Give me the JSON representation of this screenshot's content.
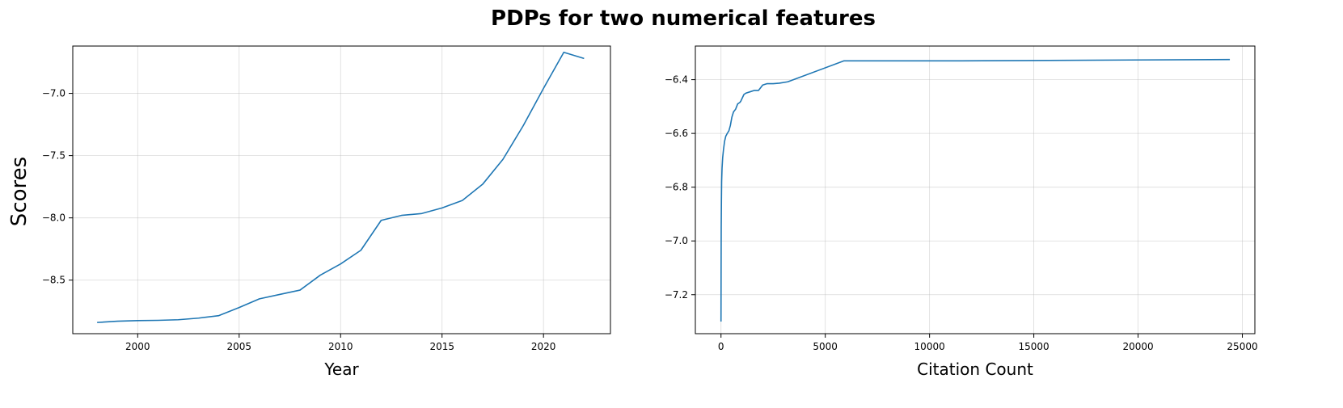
{
  "figure": {
    "title": "PDPs for two numerical features",
    "ylabel": "Scores"
  },
  "chart_data": [
    {
      "type": "line",
      "title": "",
      "xlabel": "Year",
      "ylabel": "Scores",
      "xlim": [
        1996.8,
        2023.3
      ],
      "ylim": [
        -8.93,
        -6.62
      ],
      "xticks": [
        2000,
        2005,
        2010,
        2015,
        2020
      ],
      "yticks": [
        -8.5,
        -8.0,
        -7.5,
        -7.0
      ],
      "grid": true,
      "color": "#1f77b4",
      "x": [
        1998,
        1999,
        2000,
        2001,
        2002,
        2003,
        2004,
        2005,
        2006,
        2007,
        2008,
        2009,
        2010,
        2011,
        2012,
        2013,
        2014,
        2015,
        2016,
        2017,
        2018,
        2019,
        2020,
        2021,
        2022
      ],
      "y": [
        -8.84,
        -8.83,
        -8.825,
        -8.823,
        -8.818,
        -8.805,
        -8.785,
        -8.72,
        -8.65,
        -8.615,
        -8.58,
        -8.46,
        -8.37,
        -8.26,
        -8.02,
        -7.98,
        -7.965,
        -7.92,
        -7.86,
        -7.73,
        -7.53,
        -7.26,
        -6.96,
        -6.67,
        -6.72
      ]
    },
    {
      "type": "line",
      "title": "",
      "xlabel": "Citation Count",
      "ylabel": "",
      "xlim": [
        -1230,
        25600
      ],
      "ylim": [
        -7.345,
        -6.275
      ],
      "xticks": [
        0,
        5000,
        10000,
        15000,
        20000,
        25000
      ],
      "yticks": [
        -7.2,
        -7.0,
        -6.8,
        -6.6,
        -6.4
      ],
      "grid": true,
      "color": "#1f77b4",
      "x": [
        0,
        5,
        10,
        20,
        30,
        50,
        80,
        120,
        170,
        230,
        300,
        380,
        450,
        520,
        600,
        700,
        800,
        900,
        950,
        1100,
        1200,
        1400,
        1600,
        1800,
        2000,
        2200,
        2500,
        2800,
        3200,
        5900,
        11500,
        24400
      ],
      "y": [
        -7.3,
        -7.1,
        -6.95,
        -6.85,
        -6.78,
        -6.73,
        -6.69,
        -6.66,
        -6.63,
        -6.61,
        -6.6,
        -6.59,
        -6.57,
        -6.54,
        -6.52,
        -6.51,
        -6.49,
        -6.485,
        -6.48,
        -6.455,
        -6.45,
        -6.445,
        -6.44,
        -6.44,
        -6.42,
        -6.415,
        -6.415,
        -6.413,
        -6.408,
        -6.33,
        -6.33,
        -6.325
      ]
    }
  ]
}
